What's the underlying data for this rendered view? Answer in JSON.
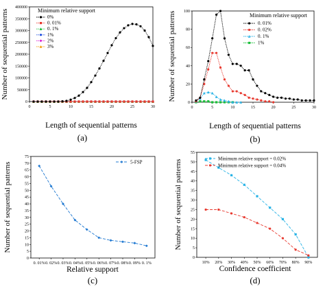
{
  "chart_data": [
    {
      "panel": "(a)",
      "type": "line",
      "xlabel": "Length of sequential patterns",
      "ylabel": "Number of sequential patterns",
      "xlim": [
        0,
        30
      ],
      "ylim": [
        0,
        400000
      ],
      "xticks": [
        0,
        5,
        10,
        15,
        20,
        25,
        30
      ],
      "yticks": [
        0,
        50000,
        100000,
        150000,
        200000,
        250000,
        300000,
        350000,
        400000
      ],
      "legend_title": "Minimum relative support",
      "legend_position": "top-left",
      "x": [
        1,
        2,
        3,
        4,
        5,
        6,
        7,
        8,
        9,
        10,
        11,
        12,
        13,
        14,
        15,
        16,
        17,
        18,
        19,
        20,
        21,
        22,
        23,
        24,
        25,
        26,
        27,
        28,
        29,
        30
      ],
      "series": [
        {
          "name": "0%",
          "color": "#000000",
          "values": [
            0,
            0,
            0,
            0,
            0,
            0,
            100,
            1000,
            3000,
            8000,
            15000,
            25000,
            40000,
            58000,
            82000,
            110000,
            140000,
            172000,
            205000,
            238000,
            268000,
            292000,
            310000,
            322000,
            328000,
            326000,
            318000,
            300000,
            272000,
            235000
          ]
        },
        {
          "name": "0. 01%",
          "color": "#e8392f",
          "values": [
            0,
            0,
            0,
            0,
            0,
            0,
            0,
            0,
            0,
            0,
            0,
            0,
            0,
            0,
            0,
            0,
            0,
            0,
            0,
            0,
            0,
            0,
            0,
            0,
            0,
            0,
            0,
            0,
            0,
            0
          ]
        },
        {
          "name": "0. 1%",
          "color": "#1bbf3a",
          "values": [
            0,
            0,
            0,
            0,
            0,
            0,
            0,
            0,
            0,
            0,
            0,
            0,
            0,
            0,
            0,
            0,
            0,
            0,
            0,
            0,
            0,
            0,
            0,
            0,
            0,
            0,
            0,
            0,
            0,
            0
          ]
        },
        {
          "name": "1%",
          "color": "#1f4fe0",
          "values": [
            0,
            0,
            0,
            0,
            0,
            0,
            0,
            0,
            0,
            0,
            0,
            0,
            0,
            0,
            0,
            0,
            0,
            0,
            0,
            0,
            0,
            0,
            0,
            0,
            0,
            0,
            0,
            0,
            0,
            0
          ]
        },
        {
          "name": "2%",
          "color": "#d81ad2",
          "values": [
            0,
            0,
            0,
            0,
            0,
            0,
            0,
            0,
            0,
            0,
            0,
            0,
            0,
            0,
            0,
            0,
            0,
            0,
            0,
            0,
            0,
            0,
            0,
            0,
            0,
            0,
            0,
            0,
            0,
            0
          ]
        },
        {
          "name": "3%",
          "color": "#f5a21a",
          "values": [
            0,
            0,
            0,
            0,
            0,
            0,
            0,
            0,
            0,
            0,
            0,
            0,
            0,
            0,
            0,
            0,
            0,
            0,
            0,
            0,
            0,
            0,
            0,
            0,
            0,
            0,
            0,
            0,
            0,
            0
          ]
        }
      ]
    },
    {
      "panel": "(b)",
      "type": "line",
      "xlabel": "Length of sequential patterns",
      "ylabel": "Number of sequential patterns",
      "xlim": [
        0,
        30
      ],
      "ylim": [
        0,
        100
      ],
      "xticks": [
        0,
        5,
        10,
        15,
        20,
        25,
        30
      ],
      "yticks": [
        0,
        20,
        40,
        60,
        80,
        100
      ],
      "legend_title": "Minimum relative support",
      "legend_position": "top-right",
      "series": [
        {
          "name": "0. 01%",
          "color": "#000000",
          "x": [
            1,
            2,
            3,
            4,
            5,
            6,
            7,
            8,
            9,
            10,
            11,
            12,
            13,
            14,
            15,
            16,
            17,
            18,
            19,
            20,
            21,
            22,
            23,
            24,
            25,
            26,
            27,
            28,
            29,
            30
          ],
          "values": [
            2,
            5,
            25,
            45,
            70,
            96,
            100,
            70,
            52,
            42,
            42,
            40,
            35,
            35,
            25,
            18,
            12,
            10,
            8,
            6,
            5,
            5,
            4,
            4,
            3,
            3,
            2,
            2,
            2,
            2
          ]
        },
        {
          "name": "0. 02%",
          "color": "#e8392f",
          "x": [
            1,
            2,
            3,
            4,
            5,
            6,
            7,
            8,
            9,
            10,
            11,
            12,
            13,
            14,
            15,
            16,
            17,
            18,
            19,
            20
          ],
          "values": [
            1,
            5,
            20,
            36,
            54,
            54,
            38,
            25,
            18,
            12,
            12,
            10,
            8,
            5,
            4,
            3,
            2,
            1,
            1,
            0
          ]
        },
        {
          "name": "0. 1%",
          "color": "#29b3e6",
          "x": [
            1,
            2,
            3,
            4,
            5,
            6,
            7,
            8,
            9,
            10,
            11,
            12
          ],
          "values": [
            1,
            4,
            10,
            11,
            10,
            6,
            3,
            2,
            1,
            0,
            0,
            0
          ]
        },
        {
          "name": "1%",
          "color": "#1bbf3a",
          "x": [
            1,
            2,
            3,
            4,
            5,
            6,
            7,
            8,
            9,
            10
          ],
          "values": [
            0,
            1,
            1,
            1,
            0,
            0,
            0,
            0,
            0,
            0
          ]
        }
      ]
    },
    {
      "panel": "(c)",
      "type": "line",
      "xlabel": "Relative support",
      "ylabel": "Number of sequential patterns",
      "ylim": [
        0,
        75
      ],
      "yticks": [
        0,
        5,
        10,
        15,
        20,
        25,
        30,
        35,
        40,
        45,
        50,
        55,
        60,
        65,
        70,
        75
      ],
      "categories": [
        "0. 01%",
        "0. 02%",
        "0. 03%",
        "0. 04%",
        "0. 05%",
        "0. 06%",
        "0. 07%",
        "0. 08%",
        "0. 09%",
        "0. 1%"
      ],
      "legend_position": "top-right",
      "series": [
        {
          "name": "5-FSP",
          "color": "#1f78d1",
          "values": [
            68,
            53,
            40,
            28,
            21,
            15,
            13,
            12,
            11,
            9
          ]
        }
      ]
    },
    {
      "panel": "(d)",
      "type": "line",
      "xlabel": "Confidence coefficient",
      "ylabel": "Number of sequential patterns",
      "ylim": [
        0,
        55
      ],
      "yticks": [
        0,
        5,
        10,
        15,
        20,
        25,
        30,
        35,
        40,
        45,
        50,
        55
      ],
      "categories": [
        "10%",
        "20%",
        "30%",
        "40%",
        "50%",
        "60%",
        "70%",
        "80%",
        "90%"
      ],
      "legend_position": "top-right",
      "series": [
        {
          "name": "Minimum relative support = 0.02%",
          "color": "#29b3e6",
          "values": [
            51,
            47,
            43,
            38,
            32,
            26,
            20,
            12,
            0
          ]
        },
        {
          "name": "Minimum relative support = 0.04%",
          "color": "#e8392f",
          "values": [
            25,
            25,
            23,
            21,
            18,
            15,
            10,
            4,
            1
          ]
        }
      ]
    }
  ]
}
